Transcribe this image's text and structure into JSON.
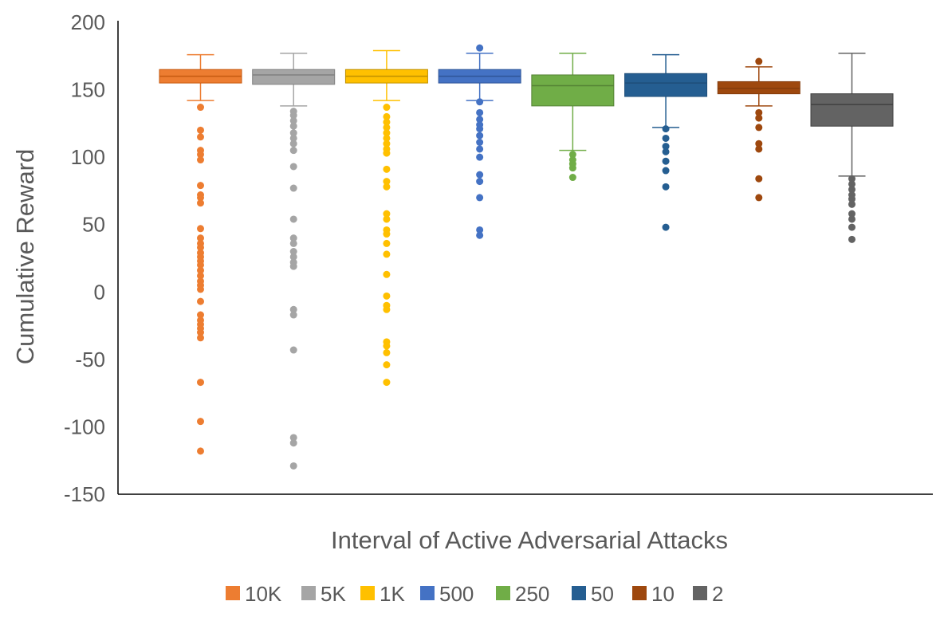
{
  "chart_data": {
    "type": "boxplot",
    "title": "",
    "xlabel": "Interval of Active Adversarial Attacks",
    "ylabel": "Cumulative Reward",
    "ylim": [
      -150,
      200
    ],
    "yticks": [
      200,
      150,
      100,
      50,
      0,
      -50,
      -100,
      -150
    ],
    "grid": false,
    "legend_position": "bottom",
    "series": [
      {
        "name": "10K",
        "color": "#ED7D31",
        "box_border": "#C55A11",
        "min": 142,
        "q1": 155,
        "median": 160,
        "q3": 165,
        "max": 176,
        "outliers": [
          137,
          120,
          115,
          105,
          102,
          98,
          79,
          72,
          70,
          66,
          47,
          40,
          36,
          33,
          29,
          26,
          23,
          20,
          16,
          12,
          8,
          5,
          2,
          -7,
          -17,
          -21,
          -24,
          -27,
          -30,
          -34,
          -67,
          -96,
          -118
        ]
      },
      {
        "name": "5K",
        "color": "#A5A5A5",
        "box_border": "#808080",
        "min": 138,
        "q1": 154,
        "median": 161,
        "q3": 165,
        "max": 177,
        "outliers": [
          134,
          131,
          127,
          123,
          118,
          114,
          110,
          105,
          93,
          77,
          54,
          40,
          36,
          30,
          26,
          22,
          19,
          -13,
          -17,
          -43,
          -108,
          -112,
          -129
        ]
      },
      {
        "name": "1K",
        "color": "#FFC000",
        "box_border": "#BF9000",
        "min": 142,
        "q1": 155,
        "median": 160,
        "q3": 165,
        "max": 179,
        "outliers": [
          137,
          130,
          126,
          122,
          118,
          114,
          110,
          106,
          103,
          91,
          82,
          78,
          58,
          54,
          46,
          43,
          36,
          28,
          13,
          -3,
          -10,
          -13,
          -37,
          -40,
          -45,
          -54,
          -67
        ]
      },
      {
        "name": "500",
        "color": "#4472C4",
        "box_border": "#2F5597",
        "min": 142,
        "q1": 155,
        "median": 160,
        "q3": 165,
        "max": 177,
        "outliers": [
          181,
          141,
          133,
          128,
          124,
          121,
          116,
          111,
          106,
          100,
          87,
          82,
          70,
          46,
          42
        ]
      },
      {
        "name": "250",
        "color": "#70AD47",
        "box_border": "#548235",
        "min": 105,
        "q1": 138,
        "median": 153,
        "q3": 161,
        "max": 177,
        "outliers": [
          102,
          98,
          95,
          92,
          85
        ]
      },
      {
        "name": "50",
        "color": "#255E91",
        "box_border": "#1F4E79",
        "min": 122,
        "q1": 145,
        "median": 155,
        "q3": 162,
        "max": 176,
        "outliers": [
          121,
          114,
          108,
          104,
          97,
          90,
          78,
          48
        ]
      },
      {
        "name": "10",
        "color": "#9E480E",
        "box_border": "#843C0C",
        "min": 138,
        "q1": 147,
        "median": 151,
        "q3": 156,
        "max": 167,
        "outliers": [
          171,
          133,
          129,
          122,
          110,
          106,
          84,
          70
        ]
      },
      {
        "name": "2",
        "color": "#636363",
        "box_border": "#404040",
        "min": 86,
        "q1": 123,
        "median": 139,
        "q3": 147,
        "max": 177,
        "outliers": [
          84,
          80,
          76,
          72,
          69,
          65,
          58,
          54,
          48,
          39
        ]
      }
    ]
  }
}
